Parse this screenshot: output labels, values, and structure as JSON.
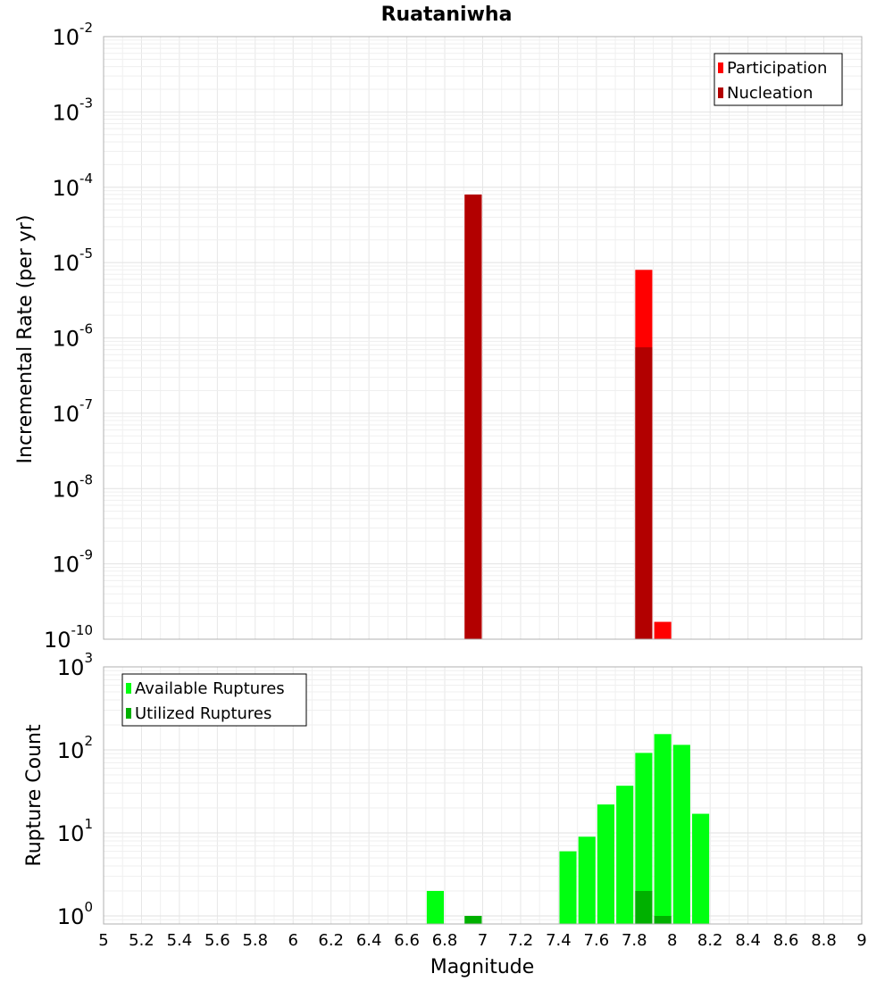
{
  "title": "Ruataniwha",
  "xlabel": "Magnitude",
  "chart_data": [
    {
      "type": "bar",
      "name": "rate-panel",
      "ylabel": "Incremental Rate (per yr)",
      "yscale": "log",
      "ylim": [
        1e-10,
        0.01
      ],
      "xlim": [
        5,
        9
      ],
      "bin_width": 0.1,
      "grid": true,
      "legend_position": "top-right",
      "series": [
        {
          "name": "Participation",
          "color": "#ff0000",
          "points": [
            {
              "x": 6.95,
              "y": 8e-05
            },
            {
              "x": 7.85,
              "y": 8e-06
            },
            {
              "x": 7.95,
              "y": 1.7e-10
            }
          ]
        },
        {
          "name": "Nucleation",
          "color": "#b20000",
          "points": [
            {
              "x": 6.95,
              "y": 8e-05
            },
            {
              "x": 7.85,
              "y": 7.5e-07
            }
          ]
        }
      ]
    },
    {
      "type": "bar",
      "name": "count-panel",
      "ylabel": "Rupture Count",
      "yscale": "log",
      "ylim": [
        0.8,
        1000
      ],
      "xlim": [
        5,
        9
      ],
      "bin_width": 0.1,
      "grid": true,
      "legend_position": "top-left",
      "series": [
        {
          "name": "Available Ruptures",
          "color": "#00ff10",
          "points": [
            {
              "x": 6.75,
              "y": 2
            },
            {
              "x": 6.95,
              "y": 1
            },
            {
              "x": 7.45,
              "y": 6
            },
            {
              "x": 7.55,
              "y": 9
            },
            {
              "x": 7.65,
              "y": 22
            },
            {
              "x": 7.75,
              "y": 37
            },
            {
              "x": 7.85,
              "y": 92
            },
            {
              "x": 7.95,
              "y": 155
            },
            {
              "x": 8.05,
              "y": 115
            },
            {
              "x": 8.15,
              "y": 17
            }
          ]
        },
        {
          "name": "Utilized Ruptures",
          "color": "#00b000",
          "points": [
            {
              "x": 6.95,
              "y": 1
            },
            {
              "x": 7.85,
              "y": 2
            },
            {
              "x": 7.95,
              "y": 1
            }
          ]
        }
      ]
    }
  ],
  "x_ticks": [
    "5",
    "5.2",
    "5.4",
    "5.6",
    "5.8",
    "6",
    "6.2",
    "6.4",
    "6.6",
    "6.8",
    "7",
    "7.2",
    "7.4",
    "7.6",
    "7.8",
    "8",
    "8.2",
    "8.4",
    "8.6",
    "8.8",
    "9"
  ],
  "rate_yticks": [
    {
      "base": "10",
      "exp": "-10"
    },
    {
      "base": "10",
      "exp": "-9"
    },
    {
      "base": "10",
      "exp": "-8"
    },
    {
      "base": "10",
      "exp": "-7"
    },
    {
      "base": "10",
      "exp": "-6"
    },
    {
      "base": "10",
      "exp": "-5"
    },
    {
      "base": "10",
      "exp": "-4"
    },
    {
      "base": "10",
      "exp": "-3"
    },
    {
      "base": "10",
      "exp": "-2"
    }
  ],
  "count_yticks": [
    {
      "base": "10",
      "exp": "0"
    },
    {
      "base": "10",
      "exp": "1"
    },
    {
      "base": "10",
      "exp": "2"
    },
    {
      "base": "10",
      "exp": "3"
    }
  ]
}
